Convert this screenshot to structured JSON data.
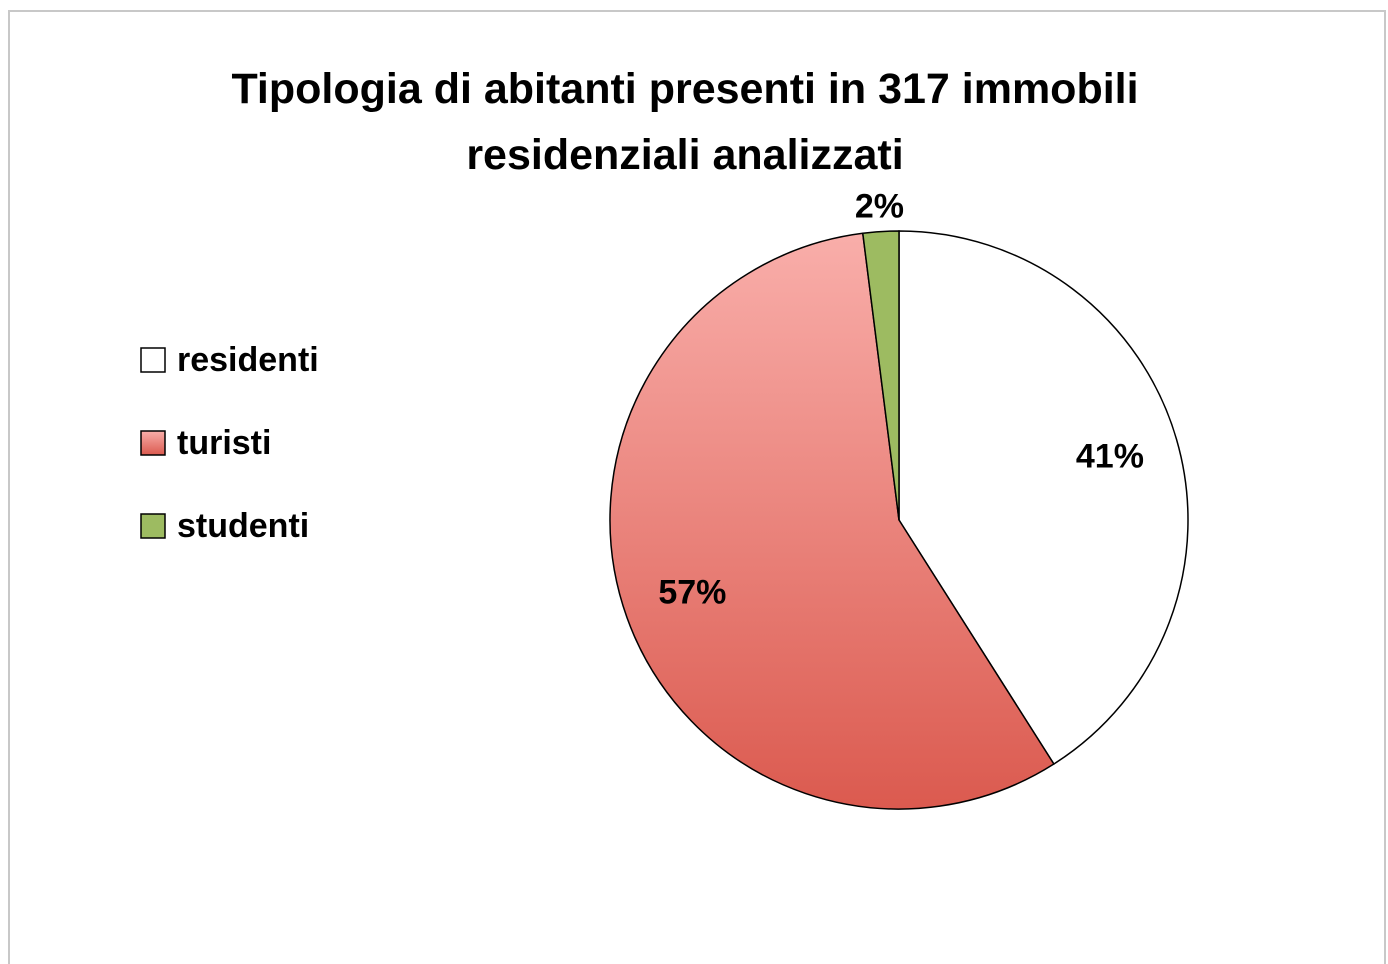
{
  "chart_data": {
    "type": "pie",
    "title": "Tipologia di abitanti presenti in 317 immobili residenziali analizzati",
    "categories": [
      "residenti",
      "turisti",
      "studenti"
    ],
    "values": [
      41,
      57,
      2
    ],
    "value_labels": [
      "41%",
      "57%",
      "2%"
    ],
    "colors": [
      "#ffffff",
      "#e8706a",
      "#9dbb61"
    ],
    "legend": "left"
  }
}
